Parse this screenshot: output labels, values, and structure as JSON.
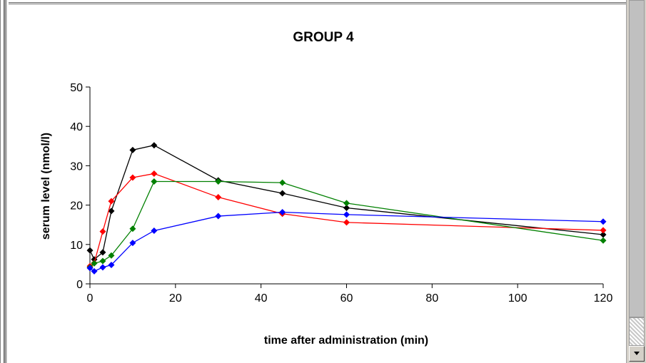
{
  "chart_data": {
    "type": "line",
    "title": "GROUP 4",
    "xlabel": "time after administration (min)",
    "ylabel": "serum level (nmol/l)",
    "xlim": [
      0,
      120
    ],
    "ylim": [
      0,
      50
    ],
    "xticks": [
      0,
      20,
      40,
      60,
      80,
      100,
      120
    ],
    "yticks": [
      0,
      10,
      20,
      30,
      40,
      50
    ],
    "grid": false,
    "legend": "none",
    "marker": "diamond",
    "series": [
      {
        "color": "#000000",
        "x": [
          0,
          1,
          3,
          5,
          10,
          15,
          30,
          45,
          60,
          120
        ],
        "y": [
          8.5,
          6.2,
          8,
          18.5,
          34,
          35.2,
          26.3,
          23,
          19.3,
          12.5
        ]
      },
      {
        "color": "#ff0000",
        "x": [
          0,
          1,
          3,
          5,
          10,
          15,
          30,
          45,
          60,
          120
        ],
        "y": [
          4.5,
          5.3,
          13.3,
          21,
          27,
          28,
          22,
          17.8,
          15.6,
          13.6
        ]
      },
      {
        "color": "#008000",
        "x": [
          0,
          1,
          3,
          5,
          10,
          15,
          30,
          45,
          60,
          120
        ],
        "y": [
          4.2,
          5.2,
          5.8,
          7.2,
          14,
          26,
          26,
          25.7,
          20.5,
          11
        ]
      },
      {
        "color": "#0000ff",
        "x": [
          0,
          1,
          3,
          5,
          10,
          15,
          30,
          45,
          60,
          120
        ],
        "y": [
          4,
          3.2,
          4.2,
          4.8,
          10.4,
          13.5,
          17.2,
          18.2,
          17.6,
          15.8
        ]
      }
    ]
  }
}
